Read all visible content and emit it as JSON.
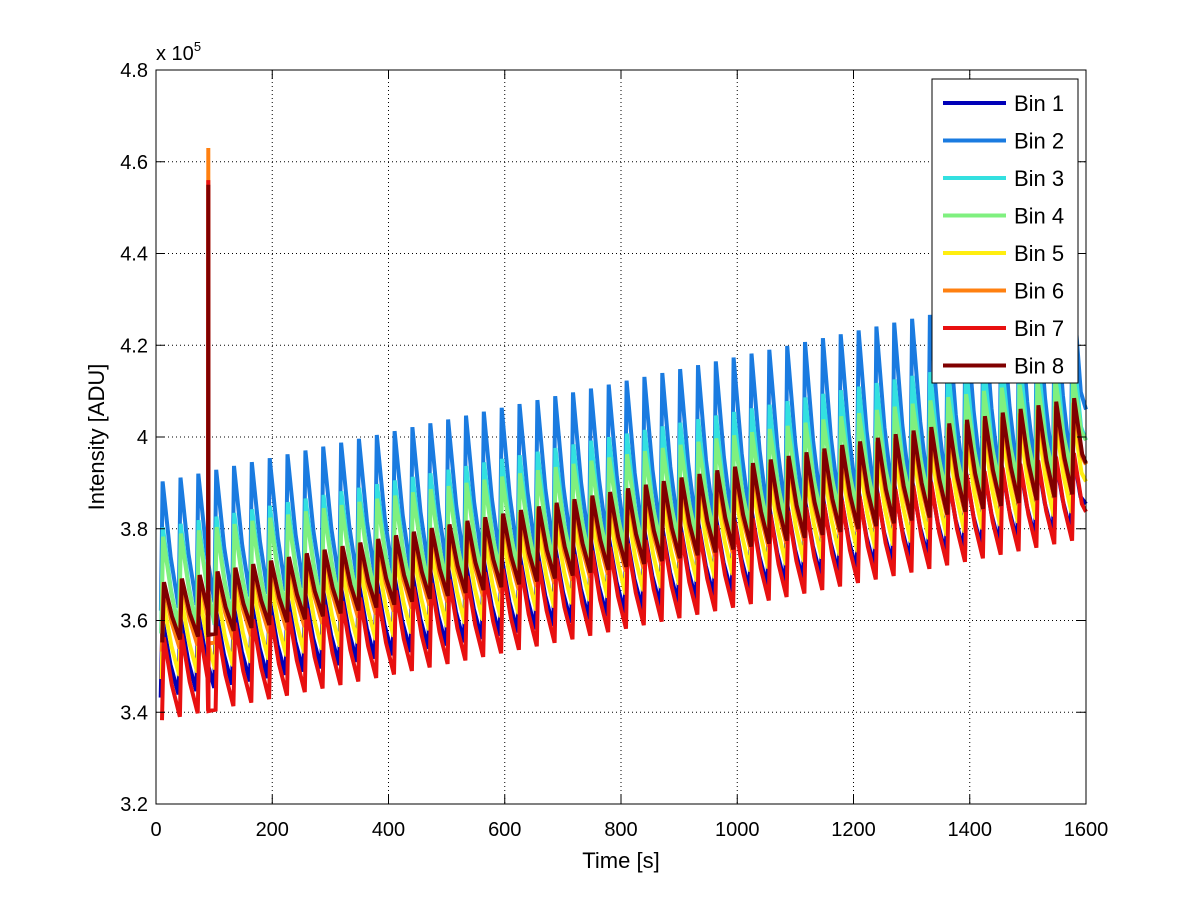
{
  "chart_data": {
    "type": "line",
    "title": "",
    "xlabel": "Time [s]",
    "ylabel": "Intensity [ADU]",
    "y_multiplier_label": "x 10",
    "y_multiplier_exponent": "5",
    "xlim": [
      0,
      1600
    ],
    "ylim": [
      320000,
      480000
    ],
    "x_ticks": [
      0,
      200,
      400,
      600,
      800,
      1000,
      1200,
      1400,
      1600
    ],
    "y_ticks": [
      3.2,
      3.4,
      3.6,
      3.8,
      4,
      4.2,
      4.4,
      4.6,
      4.8
    ],
    "x_tick_labels": [
      "0",
      "200",
      "400",
      "600",
      "800",
      "1000",
      "1200",
      "1400",
      "1600"
    ],
    "y_tick_labels": [
      "3.2",
      "3.4",
      "3.6",
      "3.8",
      "4",
      "4.2",
      "4.4",
      "4.6",
      "4.8"
    ],
    "grid": true,
    "legend_position": "top-right",
    "oscillation_period_s": 30.7,
    "series": [
      {
        "name": "Bin 1",
        "color": "#0000b8",
        "low": [
          343000,
          380000
        ],
        "high": [
          360000,
          398000
        ],
        "spike_top": null
      },
      {
        "name": "Bin 2",
        "color": "#1a7be0",
        "low": [
          362000,
          394000
        ],
        "high": [
          390000,
          434000
        ],
        "spike_top": null
      },
      {
        "name": "Bin 3",
        "color": "#33e0e0",
        "low": [
          357000,
          390000
        ],
        "high": [
          380000,
          421000
        ],
        "spike_top": null
      },
      {
        "name": "Bin 4",
        "color": "#7ff07f",
        "low": [
          357000,
          393000
        ],
        "high": [
          378000,
          414000
        ],
        "spike_top": null
      },
      {
        "name": "Bin 5",
        "color": "#ffee10",
        "low": [
          347000,
          384000
        ],
        "high": [
          364000,
          405000
        ],
        "spike_top": null
      },
      {
        "name": "Bin 6",
        "color": "#ff8010",
        "low": [
          353000,
          388000
        ],
        "high": [
          368000,
          408000
        ],
        "spike_top": 463000
      },
      {
        "name": "Bin 7",
        "color": "#e81010",
        "low": [
          338000,
          378000
        ],
        "high": [
          356000,
          397000
        ],
        "spike_top": 456000
      },
      {
        "name": "Bin 8",
        "color": "#800000",
        "low": [
          355000,
          388000
        ],
        "high": [
          368000,
          409000
        ],
        "spike_top": 455000
      }
    ],
    "spike_time_s": 90
  }
}
